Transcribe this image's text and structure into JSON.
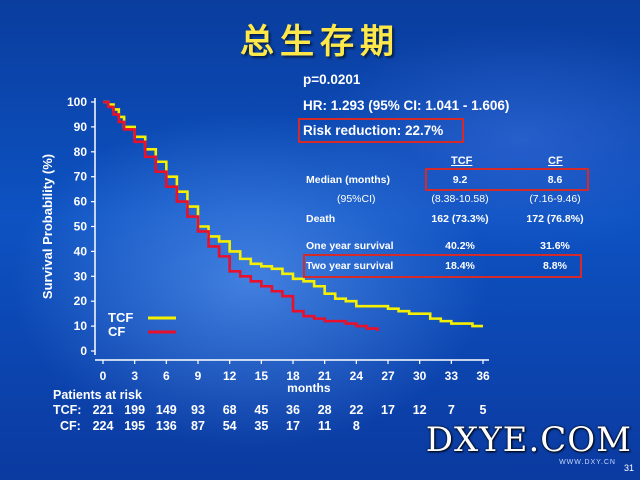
{
  "title": "总生存期",
  "stats": {
    "p_value": "p=0.0201",
    "hr": "HR: 1.293 (95% CI: 1.041 - 1.606)",
    "risk_reduction": "Risk reduction: 22.7%"
  },
  "table": {
    "headers": [
      "TCF",
      "CF"
    ],
    "rows": [
      {
        "label": "Median (months)",
        "tcf": "9.2",
        "cf": "8.6"
      },
      {
        "label": "(95%CI)",
        "tcf": "(8.38-10.58)",
        "cf": "(7.16-9.46)"
      },
      {
        "label": "Death",
        "tcf": "162 (73.3%)",
        "cf": "172 (76.8%)"
      },
      {
        "label": "One year survival",
        "tcf": "40.2%",
        "cf": "31.6%"
      },
      {
        "label": "Two year survival",
        "tcf": "18.4%",
        "cf": "8.8%"
      }
    ]
  },
  "chart_data": {
    "type": "line",
    "title": "",
    "xlabel": "months",
    "ylabel": "Survival Probability (%)",
    "xlim": [
      0,
      36
    ],
    "ylim": [
      0,
      100
    ],
    "x_ticks": [
      "0",
      "3",
      "6",
      "9",
      "12",
      "15",
      "18",
      "21",
      "24",
      "27",
      "30",
      "33",
      "36"
    ],
    "y_ticks": [
      "0",
      "10",
      "20",
      "30",
      "40",
      "50",
      "60",
      "70",
      "80",
      "90",
      "100"
    ],
    "legend": "bottom-left",
    "grid": false,
    "series": [
      {
        "name": "TCF",
        "color": "#f5f000",
        "step": true,
        "points": [
          [
            0,
            100
          ],
          [
            0.5,
            99
          ],
          [
            1,
            97
          ],
          [
            1.5,
            94
          ],
          [
            2,
            90
          ],
          [
            3,
            86
          ],
          [
            4,
            81
          ],
          [
            5,
            76
          ],
          [
            6,
            70
          ],
          [
            7,
            64
          ],
          [
            8,
            58
          ],
          [
            9,
            50
          ],
          [
            10,
            46
          ],
          [
            11,
            44
          ],
          [
            12,
            40
          ],
          [
            13,
            37
          ],
          [
            14,
            35
          ],
          [
            15,
            34
          ],
          [
            16,
            33
          ],
          [
            17,
            31
          ],
          [
            18,
            29
          ],
          [
            19,
            28
          ],
          [
            20,
            26
          ],
          [
            21,
            23
          ],
          [
            22,
            21
          ],
          [
            23,
            20
          ],
          [
            24,
            18
          ],
          [
            25,
            18
          ],
          [
            26,
            18
          ],
          [
            27,
            17
          ],
          [
            28,
            16
          ],
          [
            29,
            15
          ],
          [
            30,
            15
          ],
          [
            31,
            13
          ],
          [
            32,
            12
          ],
          [
            33,
            11
          ],
          [
            34,
            11
          ],
          [
            35,
            10
          ],
          [
            36,
            10
          ]
        ]
      },
      {
        "name": "CF",
        "color": "#e8102a",
        "step": true,
        "points": [
          [
            0,
            100
          ],
          [
            0.5,
            98
          ],
          [
            1,
            95
          ],
          [
            1.5,
            92
          ],
          [
            2,
            89
          ],
          [
            3,
            84
          ],
          [
            4,
            78
          ],
          [
            5,
            72
          ],
          [
            6,
            66
          ],
          [
            7,
            60
          ],
          [
            8,
            54
          ],
          [
            9,
            48
          ],
          [
            10,
            42
          ],
          [
            11,
            38
          ],
          [
            12,
            32
          ],
          [
            13,
            30
          ],
          [
            14,
            28
          ],
          [
            15,
            26
          ],
          [
            16,
            24
          ],
          [
            17,
            22
          ],
          [
            18,
            16
          ],
          [
            19,
            14
          ],
          [
            20,
            13
          ],
          [
            21,
            12
          ],
          [
            22,
            12
          ],
          [
            23,
            11
          ],
          [
            24,
            10
          ],
          [
            25,
            9
          ],
          [
            26,
            8
          ]
        ]
      }
    ]
  },
  "patients_at_risk": {
    "header": "Patients at risk",
    "rows": [
      {
        "label": "TCF:",
        "values": [
          "221",
          "199",
          "149",
          "93",
          "68",
          "45",
          "36",
          "28",
          "22",
          "17",
          "12",
          "7",
          "5"
        ]
      },
      {
        "label": "CF:",
        "values": [
          "224",
          "195",
          "136",
          "87",
          "54",
          "35",
          "17",
          "11",
          "8"
        ]
      }
    ]
  },
  "watermark": {
    "main": "DXYE.COM",
    "sub": "WWW.DXY.CN"
  },
  "page_number": "31"
}
